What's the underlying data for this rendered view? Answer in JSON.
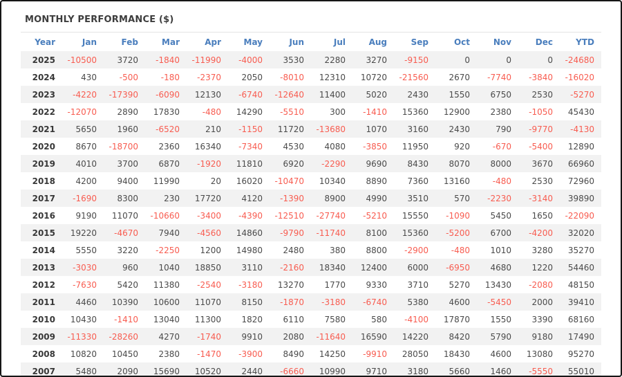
{
  "panel": {
    "title": "MONTHLY PERFORMANCE ($)"
  },
  "colors": {
    "header_text": "#4a7ebd",
    "negative_value": "#f85c50",
    "positive_value": "#4a4a4a",
    "year_text": "#383838",
    "row_stripe": "#f2f2f2",
    "frame_border": "#161616",
    "separator": "#e4e4e4",
    "background": "#ffffff"
  },
  "chart_data": {
    "type": "table",
    "title": "MONTHLY PERFORMANCE ($)",
    "columns": [
      "Year",
      "Jan",
      "Feb",
      "Mar",
      "Apr",
      "May",
      "Jun",
      "Jul",
      "Aug",
      "Sep",
      "Oct",
      "Nov",
      "Dec",
      "YTD"
    ],
    "rows": [
      {
        "year": "2025",
        "values": [
          -10500,
          3720,
          -1840,
          -11990,
          -4000,
          3530,
          2280,
          3270,
          -9150,
          0,
          0,
          0
        ],
        "ytd": -24680
      },
      {
        "year": "2024",
        "values": [
          430,
          -500,
          -180,
          -2370,
          2050,
          -8010,
          12310,
          10720,
          -21560,
          2670,
          -7740,
          -3840
        ],
        "ytd": -16020
      },
      {
        "year": "2023",
        "values": [
          -4220,
          -17390,
          -6090,
          12130,
          -6740,
          -12640,
          11400,
          5020,
          2430,
          1550,
          6750,
          2530
        ],
        "ytd": -5270
      },
      {
        "year": "2022",
        "values": [
          -12070,
          2890,
          17830,
          -480,
          14290,
          -5510,
          300,
          -1410,
          15360,
          12900,
          2380,
          -1050
        ],
        "ytd": 45430
      },
      {
        "year": "2021",
        "values": [
          5650,
          1960,
          -6520,
          210,
          -1150,
          11720,
          -13680,
          1070,
          3160,
          2430,
          790,
          -9770
        ],
        "ytd": -4130
      },
      {
        "year": "2020",
        "values": [
          8670,
          -18700,
          2360,
          16340,
          -7340,
          4530,
          4080,
          -3850,
          11950,
          920,
          -670,
          -5400
        ],
        "ytd": 12890
      },
      {
        "year": "2019",
        "values": [
          4010,
          3700,
          6870,
          -1920,
          11810,
          6920,
          -2290,
          9690,
          8430,
          8070,
          8000,
          3670
        ],
        "ytd": 66960
      },
      {
        "year": "2018",
        "values": [
          4200,
          9400,
          11990,
          20,
          16020,
          -10470,
          10340,
          8890,
          7360,
          13160,
          -480,
          2530
        ],
        "ytd": 72960
      },
      {
        "year": "2017",
        "values": [
          -1690,
          8300,
          230,
          17720,
          4120,
          -1390,
          8900,
          4990,
          3510,
          570,
          -2230,
          -3140
        ],
        "ytd": 39890
      },
      {
        "year": "2016",
        "values": [
          9190,
          11070,
          -10660,
          -3400,
          -4390,
          -12510,
          -27740,
          -5210,
          15550,
          -1090,
          5450,
          1650
        ],
        "ytd": -22090
      },
      {
        "year": "2015",
        "values": [
          19220,
          -4670,
          7940,
          -4560,
          14860,
          -9790,
          -11740,
          8100,
          15360,
          -5200,
          6700,
          -4200
        ],
        "ytd": 32020
      },
      {
        "year": "2014",
        "values": [
          5550,
          3220,
          -2250,
          1200,
          14980,
          2480,
          380,
          8800,
          -2900,
          -480,
          1010,
          3280
        ],
        "ytd": 35270
      },
      {
        "year": "2013",
        "values": [
          -3030,
          960,
          1040,
          18850,
          3110,
          -2160,
          18340,
          12400,
          6000,
          -6950,
          4680,
          1220
        ],
        "ytd": 54460
      },
      {
        "year": "2012",
        "values": [
          -7630,
          5420,
          11380,
          -2540,
          -3180,
          13270,
          1770,
          9330,
          3710,
          5270,
          13430,
          -2080
        ],
        "ytd": 48150
      },
      {
        "year": "2011",
        "values": [
          4460,
          10390,
          10600,
          11070,
          8150,
          -1870,
          -3180,
          -6740,
          5380,
          4600,
          -5450,
          2000
        ],
        "ytd": 39410
      },
      {
        "year": "2010",
        "values": [
          10430,
          -1410,
          13040,
          11300,
          1820,
          6110,
          7580,
          580,
          -4100,
          17870,
          1550,
          3390
        ],
        "ytd": 68160
      },
      {
        "year": "2009",
        "values": [
          -11330,
          -28260,
          4270,
          -1740,
          9910,
          2080,
          -11640,
          16590,
          14220,
          8420,
          5790,
          9180
        ],
        "ytd": 17490
      },
      {
        "year": "2008",
        "values": [
          10820,
          10450,
          2380,
          -1470,
          -3900,
          8490,
          14250,
          -9910,
          28050,
          18430,
          4600,
          13080
        ],
        "ytd": 95270
      },
      {
        "year": "2007",
        "values": [
          5480,
          2090,
          15690,
          10520,
          2440,
          -6660,
          10990,
          9710,
          3180,
          5660,
          1460,
          -5550
        ],
        "ytd": 55010
      }
    ]
  }
}
